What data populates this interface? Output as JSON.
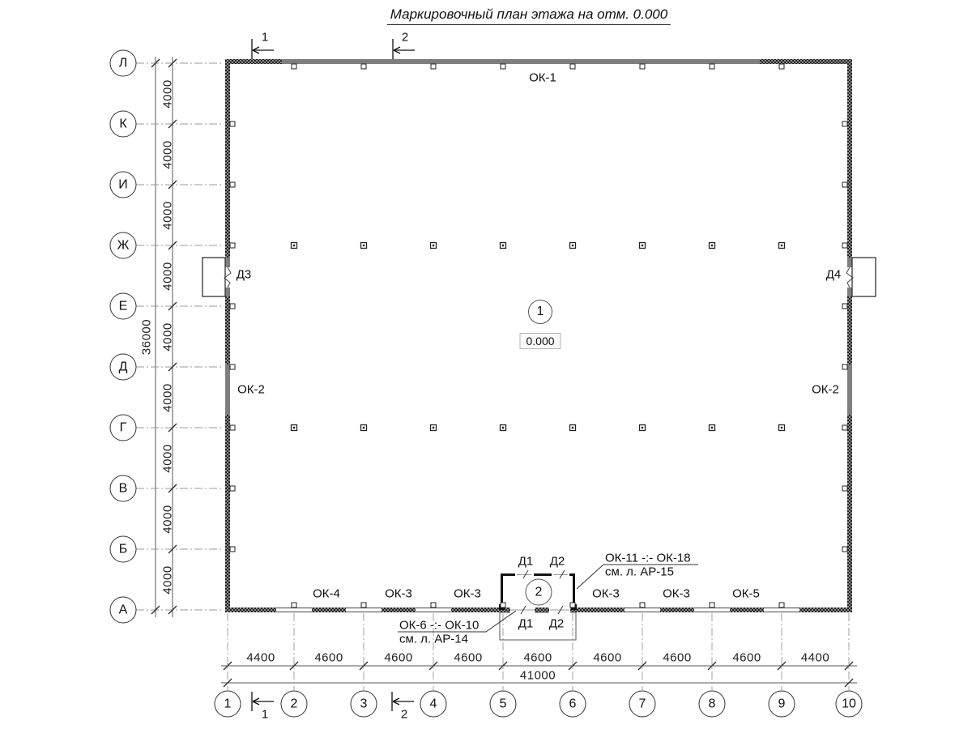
{
  "title": "Маркировочный план этажа на отм. 0.000",
  "axes": {
    "rows": [
      "Л",
      "К",
      "И",
      "Ж",
      "Е",
      "Д",
      "Г",
      "В",
      "Б",
      "А"
    ],
    "cols": [
      "1",
      "2",
      "3",
      "4",
      "5",
      "6",
      "7",
      "8",
      "9",
      "10"
    ]
  },
  "dimensions": {
    "row_spacings": [
      "4000",
      "4000",
      "4000",
      "4000",
      "4000",
      "4000",
      "4000",
      "4000",
      "4000"
    ],
    "rows_total": "36000",
    "col_spacings": [
      "4400",
      "4600",
      "4600",
      "4600",
      "4600",
      "4600",
      "4600",
      "4600",
      "4400"
    ],
    "cols_total": "41000"
  },
  "sections": [
    "1",
    "2"
  ],
  "labels": {
    "window_top": "ОК-1",
    "window_left": "ОК-2",
    "window_right": "ОК-2",
    "door_left": "Д3",
    "door_right": "Д4",
    "bottom_windows": [
      "ОК-4",
      "ОК-3",
      "ОК-3",
      "ОК-3",
      "ОК-3",
      "ОК-5"
    ],
    "tambour_top": [
      "Д1",
      "Д2"
    ],
    "tambour_bottom": [
      "Д1",
      "Д2"
    ]
  },
  "rooms": {
    "main": {
      "number": "1",
      "elevation": "0.000"
    },
    "tambour": {
      "number": "2"
    }
  },
  "callouts": [
    {
      "line1": "ОК-11 -:- ОК-18",
      "line2": "см. л. АР-15"
    },
    {
      "line1": "ОК-6 -:- ОК-10",
      "line2": "см. л. АР-14"
    }
  ]
}
